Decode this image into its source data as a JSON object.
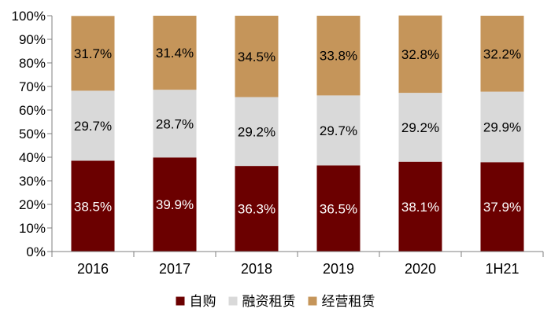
{
  "chart_data": {
    "type": "bar",
    "stacked": true,
    "categories": [
      "2016",
      "2017",
      "2018",
      "2019",
      "2020",
      "1H21"
    ],
    "series": [
      {
        "name": "自购",
        "color": "#6B0000",
        "label_color": "#ffffff",
        "values": [
          38.5,
          39.9,
          36.3,
          36.5,
          38.1,
          37.9
        ],
        "labels": [
          "38.5%",
          "39.9%",
          "36.3%",
          "36.5%",
          "38.1%",
          "37.9%"
        ]
      },
      {
        "name": "融资租赁",
        "color": "#D9D9D9",
        "label_color": "#000000",
        "values": [
          29.7,
          28.7,
          29.2,
          29.7,
          29.2,
          29.9
        ],
        "labels": [
          "29.7%",
          "28.7%",
          "29.2%",
          "29.7%",
          "29.2%",
          "29.9%"
        ]
      },
      {
        "name": "经营租赁",
        "color": "#C5955A",
        "label_color": "#000000",
        "values": [
          31.7,
          31.4,
          34.5,
          33.8,
          32.8,
          32.2
        ],
        "labels": [
          "31.7%",
          "31.4%",
          "34.5%",
          "33.8%",
          "32.8%",
          "32.2%"
        ]
      }
    ],
    "ylim": [
      0,
      100
    ],
    "yticks": [
      "0%",
      "10%",
      "20%",
      "30%",
      "40%",
      "50%",
      "60%",
      "70%",
      "80%",
      "90%",
      "100%"
    ],
    "title": "",
    "xlabel": "",
    "ylabel": "",
    "grid": false,
    "legend_position": "bottom"
  }
}
